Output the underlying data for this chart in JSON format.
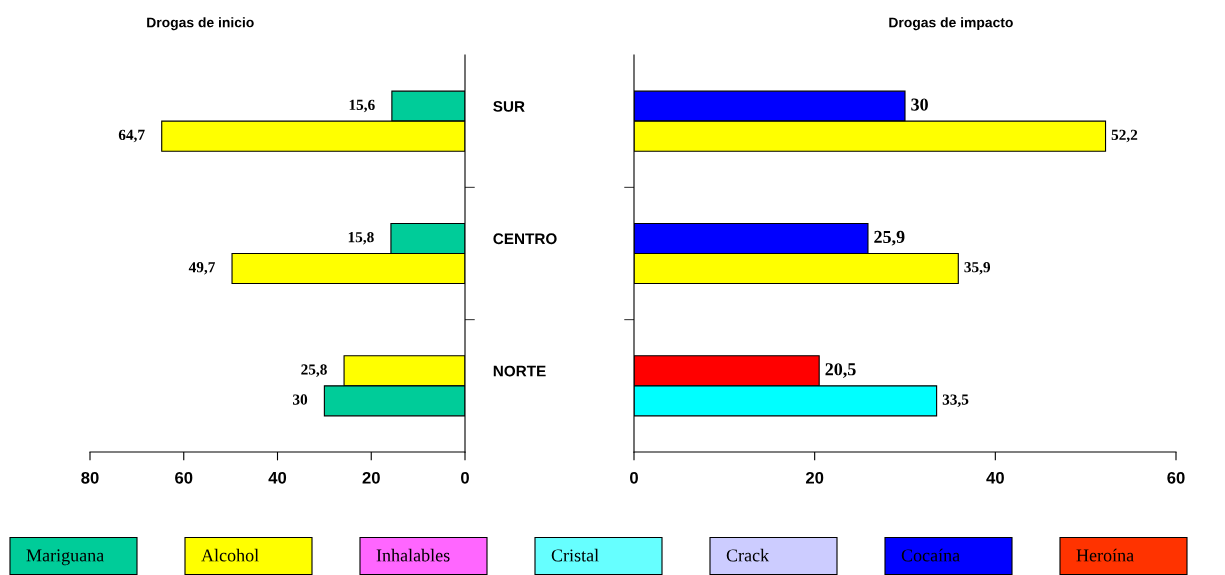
{
  "chart_data": [
    {
      "type": "bar",
      "orientation": "horizontal",
      "title": "Drogas de inicio",
      "categories": [
        "SUR",
        "CENTRO",
        "NORTE"
      ],
      "xlim": [
        80,
        0
      ],
      "xticks": [
        80,
        60,
        40,
        20,
        0
      ],
      "grid": false,
      "legend": false,
      "data_labels": true,
      "series": [
        {
          "colors": [
            "#00cc99",
            "#00cc99",
            "#ffff00"
          ],
          "values": [
            15.6,
            15.8,
            25.8
          ],
          "value_labels": [
            "15,6",
            "15,8",
            "25,8"
          ]
        },
        {
          "colors": [
            "#ffff00",
            "#ffff00",
            "#00cc99"
          ],
          "values": [
            64.7,
            49.7,
            30
          ],
          "value_labels": [
            "64,7",
            "49,7",
            "30"
          ]
        }
      ]
    },
    {
      "type": "bar",
      "orientation": "horizontal",
      "title": "Drogas de impacto",
      "categories": [
        null,
        null,
        null
      ],
      "xlim": [
        0,
        60
      ],
      "xticks": [
        0,
        20,
        40,
        60
      ],
      "grid": false,
      "legend": false,
      "data_labels": true,
      "series": [
        {
          "colors": [
            "#0000ff",
            "#0000ff",
            "#ff0000"
          ],
          "values": [
            30,
            25.9,
            20.5
          ],
          "value_labels": [
            "30",
            "25,9",
            "20,5"
          ]
        },
        {
          "colors": [
            "#ffff00",
            "#ffff00",
            "#00ffff"
          ],
          "values": [
            52.2,
            35.9,
            33.5
          ],
          "value_labels": [
            "52,2",
            "35,9",
            "33,5"
          ]
        }
      ]
    },
    {
      "type": "other",
      "categories": [
        "Mariguana",
        "Alcohol",
        "Inhalables",
        "Cristal",
        "Crack",
        "Cocaína",
        "Heroína"
      ],
      "colors": [
        "#00cc99",
        "#ffff00",
        "#ff66ff",
        "#66ffff",
        "#ccccff",
        "#0000ff",
        "#ff3300"
      ]
    }
  ]
}
